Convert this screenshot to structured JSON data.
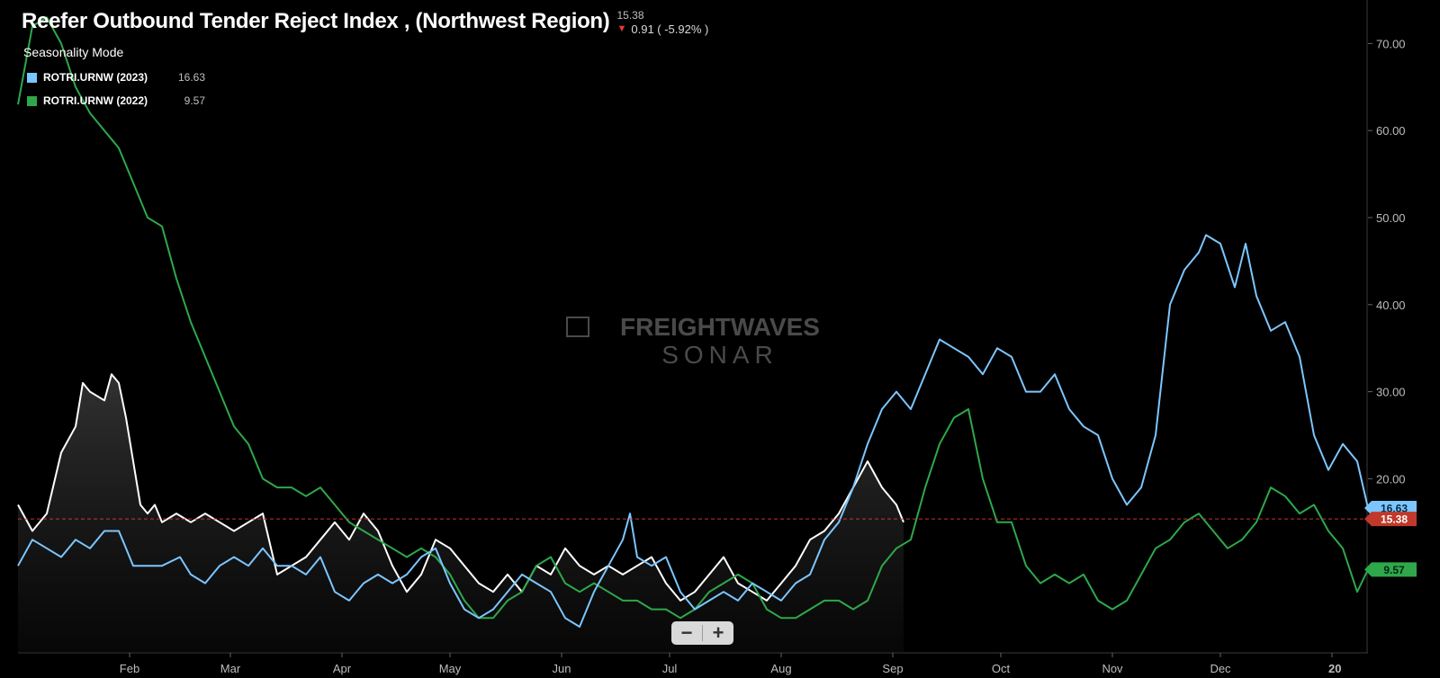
{
  "header": {
    "title": "Reefer Outbound Tender Reject Index , (Northwest Region)",
    "last_value": "15.38",
    "change": "0.91 ( -5.92% )",
    "direction_icon": "arrow-down-icon",
    "change_color": "#e53935"
  },
  "mode_label": "Seasonality Mode",
  "legend": [
    {
      "name": "ROTRI.URNW (2023)",
      "value": "16.63",
      "color": "#7cc6ff"
    },
    {
      "name": "ROTRI.URNW (2022)",
      "value": "9.57",
      "color": "#2ea84a"
    }
  ],
  "watermark": {
    "line1": "FREIGHTWAVES",
    "line2": "SONAR"
  },
  "zoom": {
    "minus": "−",
    "plus": "+"
  },
  "chart_data": {
    "type": "line",
    "x_unit": "day of year",
    "ylim": [
      0,
      75
    ],
    "y_ticks": [
      "70.00",
      "60.00",
      "50.00",
      "40.00",
      "30.00",
      "20.00"
    ],
    "months": [
      {
        "label": "Feb",
        "day": 31
      },
      {
        "label": "Mar",
        "day": 59
      },
      {
        "label": "Apr",
        "day": 90
      },
      {
        "label": "May",
        "day": 120
      },
      {
        "label": "Jun",
        "day": 151
      },
      {
        "label": "Jul",
        "day": 181
      },
      {
        "label": "Aug",
        "day": 212
      },
      {
        "label": "Sep",
        "day": 243
      },
      {
        "label": "Oct",
        "day": 273
      },
      {
        "label": "Nov",
        "day": 304
      },
      {
        "label": "Dec",
        "day": 334
      },
      {
        "label": "20",
        "day": 365
      }
    ],
    "reference_line": {
      "value": 15.38,
      "label": "15.38",
      "color": "#c0392b"
    },
    "series": [
      {
        "name": "ROTRI.URNW (2023)",
        "color": "#7cc6ff",
        "end_label": "16.63",
        "points": [
          [
            0,
            10
          ],
          [
            4,
            13
          ],
          [
            8,
            12
          ],
          [
            12,
            11
          ],
          [
            16,
            13
          ],
          [
            20,
            12
          ],
          [
            24,
            14
          ],
          [
            28,
            14
          ],
          [
            30,
            12
          ],
          [
            32,
            10
          ],
          [
            40,
            10
          ],
          [
            45,
            11
          ],
          [
            48,
            9
          ],
          [
            52,
            8
          ],
          [
            56,
            10
          ],
          [
            60,
            11
          ],
          [
            64,
            10
          ],
          [
            68,
            12
          ],
          [
            72,
            10
          ],
          [
            76,
            10
          ],
          [
            80,
            9
          ],
          [
            84,
            11
          ],
          [
            88,
            7
          ],
          [
            92,
            6
          ],
          [
            96,
            8
          ],
          [
            100,
            9
          ],
          [
            104,
            8
          ],
          [
            108,
            9
          ],
          [
            112,
            11
          ],
          [
            116,
            12
          ],
          [
            120,
            8
          ],
          [
            124,
            5
          ],
          [
            128,
            4
          ],
          [
            132,
            5
          ],
          [
            136,
            7
          ],
          [
            140,
            9
          ],
          [
            144,
            8
          ],
          [
            148,
            7
          ],
          [
            152,
            4
          ],
          [
            156,
            3
          ],
          [
            160,
            7
          ],
          [
            164,
            10
          ],
          [
            168,
            13
          ],
          [
            170,
            16
          ],
          [
            172,
            11
          ],
          [
            176,
            10
          ],
          [
            180,
            11
          ],
          [
            184,
            7
          ],
          [
            188,
            5
          ],
          [
            192,
            6
          ],
          [
            196,
            7
          ],
          [
            200,
            6
          ],
          [
            204,
            8
          ],
          [
            208,
            7
          ],
          [
            212,
            6
          ],
          [
            216,
            8
          ],
          [
            220,
            9
          ],
          [
            224,
            13
          ],
          [
            228,
            15
          ],
          [
            232,
            19
          ],
          [
            236,
            24
          ],
          [
            240,
            28
          ],
          [
            244,
            30
          ],
          [
            248,
            28
          ],
          [
            252,
            32
          ],
          [
            256,
            36
          ],
          [
            260,
            35
          ],
          [
            264,
            34
          ],
          [
            268,
            32
          ],
          [
            272,
            35
          ],
          [
            276,
            34
          ],
          [
            280,
            30
          ],
          [
            284,
            30
          ],
          [
            288,
            32
          ],
          [
            292,
            28
          ],
          [
            296,
            26
          ],
          [
            300,
            25
          ],
          [
            304,
            20
          ],
          [
            308,
            17
          ],
          [
            312,
            19
          ],
          [
            316,
            25
          ],
          [
            320,
            40
          ],
          [
            324,
            44
          ],
          [
            328,
            46
          ],
          [
            330,
            48
          ],
          [
            334,
            47
          ],
          [
            338,
            42
          ],
          [
            341,
            47
          ],
          [
            344,
            41
          ],
          [
            348,
            37
          ],
          [
            352,
            38
          ],
          [
            356,
            34
          ],
          [
            360,
            25
          ],
          [
            364,
            21
          ],
          [
            368,
            24
          ],
          [
            372,
            22
          ],
          [
            375,
            16.63
          ]
        ]
      },
      {
        "name": "ROTRI.URNW (2022)",
        "color": "#2ea84a",
        "end_label": "9.57",
        "points": [
          [
            0,
            63
          ],
          [
            4,
            72
          ],
          [
            8,
            73
          ],
          [
            12,
            70
          ],
          [
            16,
            65
          ],
          [
            20,
            62
          ],
          [
            24,
            60
          ],
          [
            28,
            58
          ],
          [
            32,
            54
          ],
          [
            36,
            50
          ],
          [
            40,
            49
          ],
          [
            44,
            43
          ],
          [
            48,
            38
          ],
          [
            52,
            34
          ],
          [
            56,
            30
          ],
          [
            60,
            26
          ],
          [
            64,
            24
          ],
          [
            68,
            20
          ],
          [
            72,
            19
          ],
          [
            76,
            19
          ],
          [
            80,
            18
          ],
          [
            84,
            19
          ],
          [
            88,
            17
          ],
          [
            92,
            15
          ],
          [
            96,
            14
          ],
          [
            100,
            13
          ],
          [
            104,
            12
          ],
          [
            108,
            11
          ],
          [
            112,
            12
          ],
          [
            116,
            11
          ],
          [
            120,
            9
          ],
          [
            124,
            6
          ],
          [
            128,
            4
          ],
          [
            132,
            4
          ],
          [
            136,
            6
          ],
          [
            140,
            7
          ],
          [
            144,
            10
          ],
          [
            148,
            11
          ],
          [
            152,
            8
          ],
          [
            156,
            7
          ],
          [
            160,
            8
          ],
          [
            164,
            7
          ],
          [
            168,
            6
          ],
          [
            172,
            6
          ],
          [
            176,
            5
          ],
          [
            180,
            5
          ],
          [
            184,
            4
          ],
          [
            188,
            5
          ],
          [
            192,
            7
          ],
          [
            196,
            8
          ],
          [
            200,
            9
          ],
          [
            204,
            8
          ],
          [
            208,
            5
          ],
          [
            212,
            4
          ],
          [
            216,
            4
          ],
          [
            220,
            5
          ],
          [
            224,
            6
          ],
          [
            228,
            6
          ],
          [
            232,
            5
          ],
          [
            236,
            6
          ],
          [
            240,
            10
          ],
          [
            244,
            12
          ],
          [
            248,
            13
          ],
          [
            252,
            19
          ],
          [
            256,
            24
          ],
          [
            260,
            27
          ],
          [
            264,
            28
          ],
          [
            268,
            20
          ],
          [
            272,
            15
          ],
          [
            276,
            15
          ],
          [
            280,
            10
          ],
          [
            284,
            8
          ],
          [
            288,
            9
          ],
          [
            292,
            8
          ],
          [
            296,
            9
          ],
          [
            300,
            6
          ],
          [
            304,
            5
          ],
          [
            308,
            6
          ],
          [
            312,
            9
          ],
          [
            316,
            12
          ],
          [
            320,
            13
          ],
          [
            324,
            15
          ],
          [
            328,
            16
          ],
          [
            332,
            14
          ],
          [
            336,
            12
          ],
          [
            340,
            13
          ],
          [
            344,
            15
          ],
          [
            348,
            19
          ],
          [
            352,
            18
          ],
          [
            356,
            16
          ],
          [
            360,
            17
          ],
          [
            364,
            14
          ],
          [
            368,
            12
          ],
          [
            372,
            7
          ],
          [
            375,
            9.57
          ]
        ]
      },
      {
        "name": "",
        "color": "#ffffff",
        "fill": true,
        "points": [
          [
            0,
            17
          ],
          [
            4,
            14
          ],
          [
            8,
            16
          ],
          [
            12,
            23
          ],
          [
            16,
            26
          ],
          [
            18,
            31
          ],
          [
            20,
            30
          ],
          [
            24,
            29
          ],
          [
            26,
            32
          ],
          [
            28,
            31
          ],
          [
            30,
            27
          ],
          [
            32,
            22
          ],
          [
            34,
            17
          ],
          [
            36,
            16
          ],
          [
            38,
            17
          ],
          [
            40,
            15
          ],
          [
            44,
            16
          ],
          [
            48,
            15
          ],
          [
            52,
            16
          ],
          [
            56,
            15
          ],
          [
            60,
            14
          ],
          [
            64,
            15
          ],
          [
            68,
            16
          ],
          [
            72,
            9
          ],
          [
            76,
            10
          ],
          [
            80,
            11
          ],
          [
            84,
            13
          ],
          [
            88,
            15
          ],
          [
            92,
            13
          ],
          [
            96,
            16
          ],
          [
            100,
            14
          ],
          [
            104,
            10
          ],
          [
            108,
            7
          ],
          [
            112,
            9
          ],
          [
            116,
            13
          ],
          [
            120,
            12
          ],
          [
            124,
            10
          ],
          [
            128,
            8
          ],
          [
            132,
            7
          ],
          [
            136,
            9
          ],
          [
            140,
            7
          ],
          [
            144,
            10
          ],
          [
            148,
            9
          ],
          [
            152,
            12
          ],
          [
            156,
            10
          ],
          [
            160,
            9
          ],
          [
            164,
            10
          ],
          [
            168,
            9
          ],
          [
            172,
            10
          ],
          [
            176,
            11
          ],
          [
            180,
            8
          ],
          [
            184,
            6
          ],
          [
            188,
            7
          ],
          [
            192,
            9
          ],
          [
            196,
            11
          ],
          [
            200,
            8
          ],
          [
            204,
            7
          ],
          [
            208,
            6
          ],
          [
            212,
            8
          ],
          [
            216,
            10
          ],
          [
            220,
            13
          ],
          [
            224,
            14
          ],
          [
            228,
            16
          ],
          [
            232,
            19
          ],
          [
            236,
            22
          ],
          [
            240,
            19
          ],
          [
            244,
            17
          ],
          [
            246,
            15
          ]
        ]
      }
    ]
  }
}
